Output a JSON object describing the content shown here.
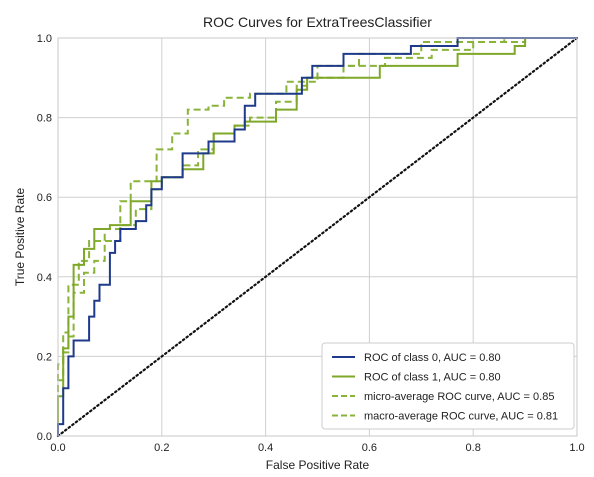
{
  "chart_data": {
    "type": "line",
    "title": "ROC Curves for ExtraTreesClassifier",
    "xlabel": "False Positive Rate",
    "ylabel": "True Positive Rate",
    "xlim": [
      0,
      1
    ],
    "ylim": [
      0,
      1
    ],
    "xticks": [
      "0.0",
      "0.2",
      "0.4",
      "0.6",
      "0.8",
      "1.0"
    ],
    "yticks": [
      "0.0",
      "0.2",
      "0.4",
      "0.6",
      "0.8",
      "1.0"
    ],
    "grid": true,
    "legend_position": "lower-right",
    "colors": {
      "class_0": "#1f3a8a",
      "class_1": "#7fa82a",
      "micro": "#8ab33a",
      "macro": "#8ab33a",
      "diagonal": "#111111",
      "grid": "#cfcfcf",
      "plot_background": "#ffffff",
      "frame": "#c9c9c9"
    },
    "series": [
      {
        "name": "ROC of class 0, AUC = 0.80",
        "style": "solid",
        "color_key": "class_0",
        "points": [
          [
            0,
            0
          ],
          [
            0,
            0.03
          ],
          [
            0.01,
            0.03
          ],
          [
            0.01,
            0.12
          ],
          [
            0.02,
            0.12
          ],
          [
            0.02,
            0.2
          ],
          [
            0.03,
            0.2
          ],
          [
            0.03,
            0.24
          ],
          [
            0.06,
            0.24
          ],
          [
            0.06,
            0.3
          ],
          [
            0.07,
            0.3
          ],
          [
            0.07,
            0.34
          ],
          [
            0.08,
            0.34
          ],
          [
            0.08,
            0.38
          ],
          [
            0.1,
            0.38
          ],
          [
            0.1,
            0.46
          ],
          [
            0.11,
            0.46
          ],
          [
            0.11,
            0.49
          ],
          [
            0.12,
            0.49
          ],
          [
            0.12,
            0.52
          ],
          [
            0.15,
            0.52
          ],
          [
            0.15,
            0.54
          ],
          [
            0.17,
            0.54
          ],
          [
            0.17,
            0.58
          ],
          [
            0.18,
            0.58
          ],
          [
            0.18,
            0.62
          ],
          [
            0.2,
            0.62
          ],
          [
            0.2,
            0.65
          ],
          [
            0.24,
            0.65
          ],
          [
            0.24,
            0.71
          ],
          [
            0.29,
            0.71
          ],
          [
            0.29,
            0.74
          ],
          [
            0.34,
            0.74
          ],
          [
            0.34,
            0.77
          ],
          [
            0.36,
            0.77
          ],
          [
            0.36,
            0.83
          ],
          [
            0.38,
            0.83
          ],
          [
            0.38,
            0.86
          ],
          [
            0.47,
            0.86
          ],
          [
            0.47,
            0.9
          ],
          [
            0.49,
            0.9
          ],
          [
            0.49,
            0.93
          ],
          [
            0.55,
            0.93
          ],
          [
            0.55,
            0.96
          ],
          [
            0.68,
            0.96
          ],
          [
            0.68,
            0.98
          ],
          [
            0.77,
            0.98
          ],
          [
            0.77,
            1.0
          ],
          [
            1.0,
            1.0
          ]
        ]
      },
      {
        "name": "ROC of class 1, AUC = 0.80",
        "style": "solid",
        "color_key": "class_1",
        "points": [
          [
            0,
            0
          ],
          [
            0,
            0.1
          ],
          [
            0.01,
            0.1
          ],
          [
            0.01,
            0.22
          ],
          [
            0.02,
            0.22
          ],
          [
            0.02,
            0.3
          ],
          [
            0.03,
            0.3
          ],
          [
            0.03,
            0.43
          ],
          [
            0.05,
            0.43
          ],
          [
            0.05,
            0.47
          ],
          [
            0.07,
            0.47
          ],
          [
            0.07,
            0.52
          ],
          [
            0.1,
            0.52
          ],
          [
            0.1,
            0.53
          ],
          [
            0.14,
            0.53
          ],
          [
            0.14,
            0.59
          ],
          [
            0.18,
            0.59
          ],
          [
            0.18,
            0.64
          ],
          [
            0.2,
            0.64
          ],
          [
            0.2,
            0.65
          ],
          [
            0.24,
            0.65
          ],
          [
            0.24,
            0.67
          ],
          [
            0.28,
            0.67
          ],
          [
            0.28,
            0.71
          ],
          [
            0.3,
            0.71
          ],
          [
            0.3,
            0.76
          ],
          [
            0.34,
            0.76
          ],
          [
            0.34,
            0.78
          ],
          [
            0.36,
            0.78
          ],
          [
            0.36,
            0.79
          ],
          [
            0.42,
            0.79
          ],
          [
            0.42,
            0.82
          ],
          [
            0.46,
            0.82
          ],
          [
            0.46,
            0.87
          ],
          [
            0.48,
            0.87
          ],
          [
            0.48,
            0.9
          ],
          [
            0.62,
            0.9
          ],
          [
            0.62,
            0.93
          ],
          [
            0.77,
            0.93
          ],
          [
            0.77,
            0.96
          ],
          [
            0.88,
            0.96
          ],
          [
            0.88,
            0.98
          ],
          [
            0.9,
            0.98
          ],
          [
            0.9,
            1.0
          ],
          [
            1.0,
            1.0
          ]
        ]
      },
      {
        "name": "micro-average ROC curve, AUC = 0.85",
        "style": "dashed",
        "color_key": "micro",
        "points": [
          [
            0,
            0
          ],
          [
            0,
            0.14
          ],
          [
            0.01,
            0.14
          ],
          [
            0.01,
            0.26
          ],
          [
            0.02,
            0.26
          ],
          [
            0.02,
            0.38
          ],
          [
            0.04,
            0.38
          ],
          [
            0.04,
            0.44
          ],
          [
            0.06,
            0.44
          ],
          [
            0.06,
            0.49
          ],
          [
            0.09,
            0.49
          ],
          [
            0.09,
            0.52
          ],
          [
            0.12,
            0.52
          ],
          [
            0.12,
            0.59
          ],
          [
            0.14,
            0.59
          ],
          [
            0.14,
            0.64
          ],
          [
            0.19,
            0.64
          ],
          [
            0.19,
            0.72
          ],
          [
            0.22,
            0.72
          ],
          [
            0.22,
            0.76
          ],
          [
            0.25,
            0.76
          ],
          [
            0.25,
            0.82
          ],
          [
            0.29,
            0.82
          ],
          [
            0.29,
            0.83
          ],
          [
            0.32,
            0.83
          ],
          [
            0.32,
            0.85
          ],
          [
            0.37,
            0.85
          ],
          [
            0.37,
            0.86
          ],
          [
            0.44,
            0.86
          ],
          [
            0.44,
            0.89
          ],
          [
            0.5,
            0.89
          ],
          [
            0.5,
            0.93
          ],
          [
            0.58,
            0.93
          ],
          [
            0.58,
            0.96
          ],
          [
            0.7,
            0.96
          ],
          [
            0.7,
            0.99
          ],
          [
            0.86,
            0.99
          ],
          [
            0.86,
            1.0
          ],
          [
            1.0,
            1.0
          ]
        ]
      },
      {
        "name": "macro-average ROC curve, AUC = 0.81",
        "style": "dashed",
        "color_key": "macro",
        "points": [
          [
            0,
            0
          ],
          [
            0,
            0.18
          ],
          [
            0.01,
            0.18
          ],
          [
            0.01,
            0.21
          ],
          [
            0.02,
            0.21
          ],
          [
            0.02,
            0.25
          ],
          [
            0.03,
            0.25
          ],
          [
            0.03,
            0.36
          ],
          [
            0.05,
            0.36
          ],
          [
            0.05,
            0.41
          ],
          [
            0.07,
            0.41
          ],
          [
            0.07,
            0.44
          ],
          [
            0.09,
            0.44
          ],
          [
            0.09,
            0.49
          ],
          [
            0.12,
            0.49
          ],
          [
            0.12,
            0.53
          ],
          [
            0.15,
            0.53
          ],
          [
            0.15,
            0.57
          ],
          [
            0.18,
            0.57
          ],
          [
            0.18,
            0.62
          ],
          [
            0.2,
            0.62
          ],
          [
            0.2,
            0.65
          ],
          [
            0.24,
            0.65
          ],
          [
            0.24,
            0.68
          ],
          [
            0.27,
            0.68
          ],
          [
            0.27,
            0.72
          ],
          [
            0.3,
            0.72
          ],
          [
            0.3,
            0.76
          ],
          [
            0.34,
            0.76
          ],
          [
            0.34,
            0.78
          ],
          [
            0.37,
            0.78
          ],
          [
            0.37,
            0.8
          ],
          [
            0.42,
            0.8
          ],
          [
            0.42,
            0.84
          ],
          [
            0.46,
            0.84
          ],
          [
            0.46,
            0.88
          ],
          [
            0.48,
            0.88
          ],
          [
            0.48,
            0.9
          ],
          [
            0.55,
            0.9
          ],
          [
            0.55,
            0.93
          ],
          [
            0.63,
            0.93
          ],
          [
            0.63,
            0.95
          ],
          [
            0.72,
            0.95
          ],
          [
            0.72,
            0.97
          ],
          [
            0.8,
            0.97
          ],
          [
            0.8,
            0.99
          ],
          [
            0.9,
            0.99
          ],
          [
            0.9,
            1.0
          ],
          [
            1.0,
            1.0
          ]
        ]
      }
    ],
    "diagonal": {
      "style": "dotted",
      "points": [
        [
          0,
          0
        ],
        [
          1,
          1
        ]
      ]
    }
  }
}
